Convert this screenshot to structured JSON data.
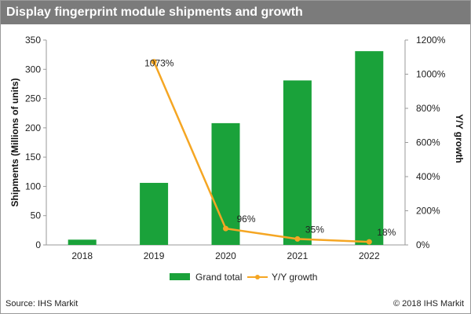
{
  "title": "Display fingerprint module shipments and growth",
  "source": "Source: IHS Markit",
  "copyright": "© 2018 IHS Markit",
  "colors": {
    "bar": "#1aa23a",
    "line": "#f5a623",
    "title_bg": "#7b7b7b"
  },
  "chart_data": {
    "type": "bar",
    "categories": [
      "2018",
      "2019",
      "2020",
      "2021",
      "2022"
    ],
    "series": [
      {
        "name": "Grand total",
        "type": "bar",
        "axis": "left",
        "values": [
          9,
          106,
          208,
          281,
          331
        ]
      },
      {
        "name": "Y/Y growth",
        "type": "line",
        "axis": "right",
        "values": [
          null,
          1073,
          96,
          35,
          18
        ]
      }
    ],
    "ylabel": "Shipments (Millions of units)",
    "y2label": "Y/Y growth",
    "ylim": [
      0,
      350
    ],
    "y2lim": [
      0,
      1200
    ],
    "yticks": [
      "0",
      "50",
      "100",
      "150",
      "200",
      "250",
      "300",
      "350"
    ],
    "y2ticks": [
      "0%",
      "200%",
      "400%",
      "600%",
      "800%",
      "1000%",
      "1200%"
    ],
    "data_labels": [
      "1073%",
      "96%",
      "35%",
      "18%"
    ],
    "legend": {
      "position": "bottom",
      "items": [
        "Grand total",
        "Y/Y growth"
      ]
    },
    "grid": false
  }
}
